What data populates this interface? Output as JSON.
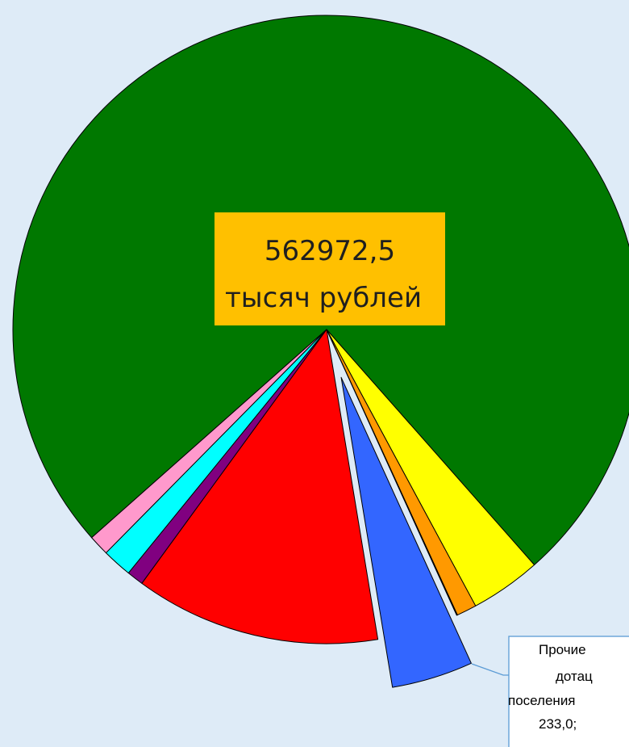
{
  "chart_data": {
    "type": "pie",
    "center_label": [
      "562972,5",
      "тысяч рублей"
    ],
    "values": [
      422280,
      20500,
      5800,
      233,
      23600,
      71150,
      4840,
      8600,
      5970
    ],
    "colors": [
      "#007800",
      "#ffff00",
      "#ff9900",
      "#ffffff",
      "#3366ff",
      "#ff0000",
      "#800080",
      "#00ffff",
      "#ff99cc"
    ],
    "exploded": [
      false,
      false,
      false,
      false,
      true,
      false,
      false,
      false,
      false
    ],
    "callout": {
      "slice": 3,
      "lines": [
        "Прочие",
        "дотац",
        "поселения"
      ]
    },
    "value_labels": [
      null,
      null,
      null,
      "233,0;",
      null,
      null,
      null,
      null,
      null
    ]
  }
}
